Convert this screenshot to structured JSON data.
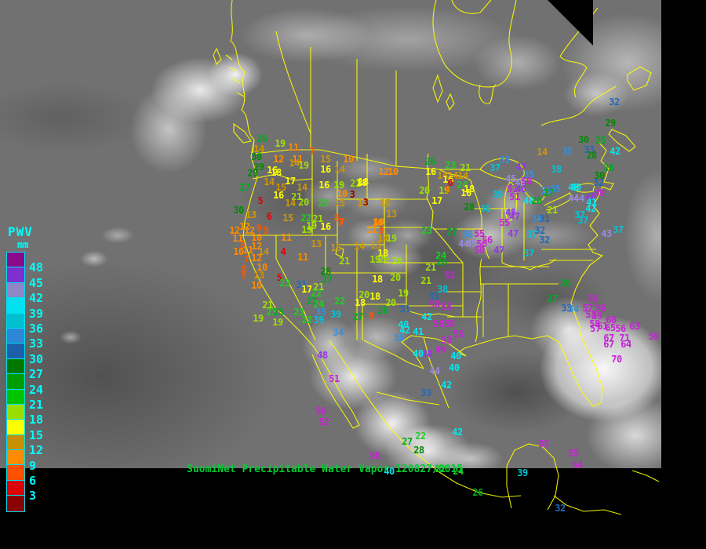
{
  "title": {
    "text": "SuomiNet Precipitable Water Vapor 120827/0015"
  },
  "legend": {
    "heading": "PWV",
    "unit": "mm",
    "boundary_labels": [
      "48",
      "45",
      "42",
      "39",
      "36",
      "33",
      "30",
      "27",
      "24",
      "21",
      "18",
      "15",
      "12",
      "9",
      "6",
      "3"
    ],
    "segment_colors": [
      "#8B0A8B",
      "#7D2FD0",
      "#8F86C8",
      "#00E0EE",
      "#00C0D0",
      "#2E86D8",
      "#1D5FA8",
      "#007800",
      "#009C00",
      "#00C400",
      "#9ADE00",
      "#FFFF00",
      "#C89000",
      "#FF8C00",
      "#FF5000",
      "#DC0000",
      "#8B0000"
    ],
    "text_color": "#00FFFF"
  },
  "scale": {
    "boundaries": [
      48,
      45,
      42,
      39,
      36,
      33,
      30,
      27,
      24,
      21,
      18,
      15,
      12,
      9,
      6,
      3
    ],
    "station_colors": [
      "#C822D8",
      "#9933EE",
      "#9B8AE0",
      "#00E8F0",
      "#00C4D8",
      "#3390E0",
      "#2468B8",
      "#008A00",
      "#00AA22",
      "#22CC22",
      "#A0E000",
      "#FFFF00",
      "#D09600",
      "#FF8C00",
      "#FF5500",
      "#E00000",
      "#990000"
    ]
  },
  "colors": {
    "map_outline": "#FFFF00",
    "background": "#000000",
    "title_text": "#00CC33"
  },
  "stations": [
    [
      26,
      334,
      177
    ],
    [
      19,
      357,
      183
    ],
    [
      11,
      374,
      188
    ],
    [
      14,
      330,
      190
    ],
    [
      7,
      398,
      193
    ],
    [
      30,
      327,
      200
    ],
    [
      12,
      355,
      203
    ],
    [
      11,
      379,
      203
    ],
    [
      15,
      415,
      203
    ],
    [
      10,
      444,
      203
    ],
    [
      14,
      375,
      208
    ],
    [
      19,
      387,
      211
    ],
    [
      29,
      330,
      213
    ],
    [
      16,
      347,
      217
    ],
    [
      18,
      352,
      220
    ],
    [
      16,
      415,
      216
    ],
    [
      14,
      433,
      216
    ],
    [
      29,
      322,
      221
    ],
    [
      27,
      312,
      239
    ],
    [
      14,
      343,
      232
    ],
    [
      17,
      370,
      231
    ],
    [
      15,
      358,
      239
    ],
    [
      14,
      385,
      239
    ],
    [
      16,
      413,
      236
    ],
    [
      19,
      432,
      236
    ],
    [
      21,
      453,
      234
    ],
    [
      18,
      463,
      232
    ],
    [
      16,
      355,
      249
    ],
    [
      21,
      378,
      251
    ],
    [
      10,
      436,
      247
    ],
    [
      3,
      449,
      248
    ],
    [
      5,
      332,
      256
    ],
    [
      14,
      370,
      259
    ],
    [
      20,
      387,
      258
    ],
    [
      23,
      412,
      259
    ],
    [
      15,
      433,
      259
    ],
    [
      13,
      462,
      259
    ],
    [
      30,
      304,
      268
    ],
    [
      13,
      320,
      274
    ],
    [
      6,
      343,
      276
    ],
    [
      15,
      367,
      278
    ],
    [
      22,
      390,
      278
    ],
    [
      21,
      405,
      279
    ],
    [
      8,
      429,
      278
    ],
    [
      7,
      436,
      283
    ],
    [
      12,
      312,
      289
    ],
    [
      9,
      330,
      291
    ],
    [
      19,
      397,
      288
    ],
    [
      16,
      415,
      289
    ],
    [
      12,
      299,
      294
    ],
    [
      12,
      318,
      294
    ],
    [
      9,
      339,
      294
    ],
    [
      19,
      391,
      293
    ],
    [
      11,
      303,
      304
    ],
    [
      10,
      327,
      303
    ],
    [
      11,
      365,
      303
    ],
    [
      8,
      309,
      313
    ],
    [
      12,
      327,
      314
    ],
    [
      13,
      403,
      311
    ],
    [
      10,
      304,
      321
    ],
    [
      11,
      316,
      319
    ],
    [
      14,
      336,
      321
    ],
    [
      4,
      361,
      321
    ],
    [
      7,
      314,
      331
    ],
    [
      12,
      327,
      329
    ],
    [
      11,
      386,
      328
    ],
    [
      8,
      311,
      343
    ],
    [
      10,
      334,
      341
    ],
    [
      28,
      415,
      346
    ],
    [
      9,
      311,
      351
    ],
    [
      13,
      330,
      351
    ],
    [
      5,
      356,
      354
    ],
    [
      27,
      417,
      356
    ],
    [
      10,
      327,
      364
    ],
    [
      23,
      363,
      361
    ],
    [
      31,
      384,
      363
    ],
    [
      17,
      391,
      369
    ],
    [
      21,
      406,
      366
    ],
    [
      22,
      403,
      374
    ],
    [
      27,
      397,
      384
    ],
    [
      24,
      406,
      388
    ],
    [
      21,
      341,
      389
    ],
    [
      23,
      346,
      398
    ],
    [
      25,
      355,
      398
    ],
    [
      23,
      381,
      398
    ],
    [
      35,
      409,
      398
    ],
    [
      22,
      391,
      408
    ],
    [
      39,
      406,
      408
    ],
    [
      19,
      329,
      406
    ],
    [
      19,
      354,
      411
    ],
    [
      12,
      489,
      219
    ],
    [
      10,
      501,
      219
    ],
    [
      18,
      461,
      233
    ],
    [
      3,
      466,
      258
    ],
    [
      15,
      491,
      259
    ],
    [
      13,
      499,
      273
    ],
    [
      10,
      481,
      284
    ],
    [
      11,
      474,
      293
    ],
    [
      9,
      486,
      294
    ],
    [
      7,
      434,
      284
    ],
    [
      10,
      483,
      283
    ],
    [
      23,
      544,
      294
    ],
    [
      14,
      488,
      304
    ],
    [
      19,
      499,
      304
    ],
    [
      13,
      479,
      313
    ],
    [
      15,
      428,
      316
    ],
    [
      14,
      458,
      314
    ],
    [
      18,
      488,
      323
    ],
    [
      24,
      562,
      326
    ],
    [
      21,
      439,
      333
    ],
    [
      19,
      478,
      331
    ],
    [
      20,
      489,
      331
    ],
    [
      20,
      506,
      333
    ],
    [
      26,
      563,
      334
    ],
    [
      21,
      549,
      341
    ],
    [
      53,
      573,
      351
    ],
    [
      18,
      481,
      356
    ],
    [
      20,
      504,
      354
    ],
    [
      21,
      543,
      358
    ],
    [
      38,
      564,
      369
    ],
    [
      33,
      553,
      378
    ],
    [
      19,
      514,
      374
    ],
    [
      20,
      464,
      376
    ],
    [
      18,
      478,
      378
    ],
    [
      18,
      459,
      386
    ],
    [
      20,
      498,
      386
    ],
    [
      22,
      433,
      384
    ],
    [
      50,
      554,
      388
    ],
    [
      55,
      569,
      391
    ],
    [
      31,
      516,
      394
    ],
    [
      26,
      488,
      396
    ],
    [
      9,
      473,
      403
    ],
    [
      27,
      456,
      404
    ],
    [
      39,
      428,
      401
    ],
    [
      42,
      544,
      404
    ],
    [
      40,
      514,
      414
    ],
    [
      50,
      559,
      413
    ],
    [
      55,
      573,
      413
    ],
    [
      26,
      548,
      206
    ],
    [
      23,
      574,
      211
    ],
    [
      21,
      593,
      214
    ],
    [
      16,
      549,
      219
    ],
    [
      14,
      564,
      224
    ],
    [
      14,
      577,
      224
    ],
    [
      14,
      590,
      224
    ],
    [
      16,
      571,
      229
    ],
    [
      24,
      589,
      236
    ],
    [
      18,
      598,
      241
    ],
    [
      20,
      541,
      243
    ],
    [
      19,
      566,
      243
    ],
    [
      16,
      594,
      246
    ],
    [
      17,
      557,
      256
    ],
    [
      28,
      598,
      264
    ],
    [
      38,
      619,
      266
    ],
    [
      39,
      634,
      248
    ],
    [
      27,
      576,
      296
    ],
    [
      36,
      596,
      299
    ],
    [
      6,
      574,
      233
    ],
    [
      9,
      571,
      242
    ],
    [
      35,
      643,
      204
    ],
    [
      37,
      631,
      214
    ],
    [
      47,
      664,
      213
    ],
    [
      45,
      651,
      228
    ],
    [
      35,
      674,
      223
    ],
    [
      45,
      663,
      233
    ],
    [
      50,
      671,
      231
    ],
    [
      38,
      709,
      216
    ],
    [
      51,
      653,
      241
    ],
    [
      46,
      664,
      241
    ],
    [
      51,
      656,
      251
    ],
    [
      40,
      674,
      256
    ],
    [
      26,
      684,
      256
    ],
    [
      36,
      696,
      243
    ],
    [
      40,
      731,
      239
    ],
    [
      21,
      704,
      268
    ],
    [
      44,
      738,
      253
    ],
    [
      48,
      651,
      271
    ],
    [
      47,
      656,
      276
    ],
    [
      55,
      643,
      284
    ],
    [
      34,
      684,
      279
    ],
    [
      31,
      694,
      279
    ],
    [
      37,
      739,
      274
    ],
    [
      37,
      743,
      281
    ],
    [
      55,
      611,
      298
    ],
    [
      44,
      591,
      311
    ],
    [
      45,
      601,
      311
    ],
    [
      56,
      621,
      306
    ],
    [
      50,
      614,
      311
    ],
    [
      47,
      654,
      298
    ],
    [
      37,
      678,
      299
    ],
    [
      32,
      694,
      306
    ],
    [
      50,
      611,
      319
    ],
    [
      47,
      636,
      319
    ],
    [
      37,
      674,
      323
    ],
    [
      14,
      691,
      194
    ],
    [
      35,
      723,
      193
    ],
    [
      30,
      744,
      178
    ],
    [
      25,
      766,
      179
    ],
    [
      33,
      751,
      191
    ],
    [
      28,
      754,
      198
    ],
    [
      42,
      784,
      193
    ],
    [
      26,
      776,
      214
    ],
    [
      30,
      764,
      224
    ],
    [
      32,
      763,
      233
    ],
    [
      40,
      734,
      239
    ],
    [
      35,
      708,
      241
    ],
    [
      27,
      699,
      246
    ],
    [
      49,
      764,
      246
    ],
    [
      44,
      731,
      253
    ],
    [
      46,
      753,
      251
    ],
    [
      41,
      754,
      258
    ],
    [
      42,
      753,
      266
    ],
    [
      43,
      773,
      298
    ],
    [
      32,
      688,
      294
    ],
    [
      37,
      788,
      293
    ],
    [
      32,
      783,
      130
    ],
    [
      29,
      778,
      157
    ],
    [
      26,
      721,
      361
    ],
    [
      27,
      704,
      381
    ],
    [
      33,
      722,
      393
    ],
    [
      34,
      731,
      394
    ],
    [
      55,
      756,
      381
    ],
    [
      57,
      749,
      393
    ],
    [
      56,
      766,
      393
    ],
    [
      53,
      753,
      401
    ],
    [
      59,
      761,
      403
    ],
    [
      60,
      779,
      408
    ],
    [
      58,
      758,
      413
    ],
    [
      57,
      759,
      419
    ],
    [
      61,
      768,
      416
    ],
    [
      65,
      778,
      418
    ],
    [
      56,
      791,
      419
    ],
    [
      63,
      809,
      416
    ],
    [
      67,
      776,
      431
    ],
    [
      71,
      796,
      431
    ],
    [
      67,
      776,
      439
    ],
    [
      64,
      798,
      439
    ],
    [
      70,
      786,
      458
    ],
    [
      59,
      833,
      429
    ],
    [
      34,
      431,
      424
    ],
    [
      36,
      508,
      431
    ],
    [
      41,
      533,
      423
    ],
    [
      42,
      516,
      421
    ],
    [
      53,
      584,
      426
    ],
    [
      53,
      569,
      434
    ],
    [
      49,
      561,
      446
    ],
    [
      48,
      411,
      453
    ],
    [
      48,
      544,
      451
    ],
    [
      40,
      533,
      451
    ],
    [
      40,
      581,
      454
    ],
    [
      40,
      579,
      469
    ],
    [
      44,
      554,
      473
    ],
    [
      51,
      426,
      483
    ],
    [
      42,
      569,
      491
    ],
    [
      33,
      543,
      501
    ],
    [
      56,
      409,
      524
    ],
    [
      52,
      413,
      538
    ],
    [
      27,
      519,
      563
    ],
    [
      22,
      536,
      556
    ],
    [
      28,
      534,
      574
    ],
    [
      58,
      478,
      581
    ],
    [
      42,
      583,
      551
    ],
    [
      53,
      693,
      566
    ],
    [
      55,
      731,
      578
    ],
    [
      54,
      736,
      593
    ],
    [
      39,
      666,
      603
    ],
    [
      26,
      609,
      628
    ],
    [
      32,
      714,
      648
    ],
    [
      22,
      561,
      598
    ],
    [
      24,
      584,
      601
    ],
    [
      40,
      496,
      601
    ]
  ]
}
